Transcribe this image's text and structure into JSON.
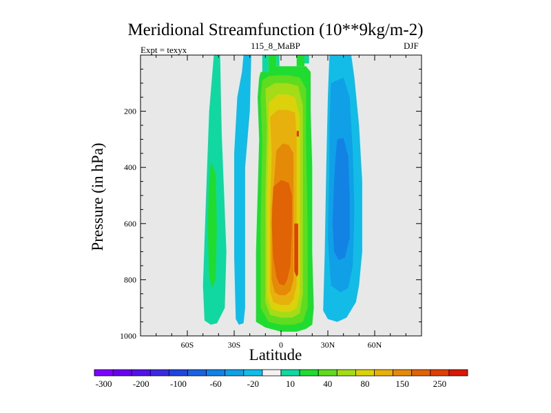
{
  "chart_data": {
    "type": "heatmap",
    "title": "Meridional Streamfunction (10**9kg/m-2)",
    "subtitle_left": "Expt = texyx",
    "subtitle_center": "115_8_MaBP",
    "subtitle_right": "DJF",
    "xlabel": "Latitude",
    "ylabel": "Pressure (in hPa)",
    "xlim": [
      -90,
      90
    ],
    "ylim": [
      1000,
      0
    ],
    "x_ticks": [
      {
        "value": -60,
        "label": "60S"
      },
      {
        "value": -30,
        "label": "30S"
      },
      {
        "value": 0,
        "label": "0"
      },
      {
        "value": 30,
        "label": "30N"
      },
      {
        "value": 60,
        "label": "60N"
      }
    ],
    "y_ticks": [
      {
        "value": 200,
        "label": "200"
      },
      {
        "value": 400,
        "label": "400"
      },
      {
        "value": 600,
        "label": "600"
      },
      {
        "value": 800,
        "label": "800"
      },
      {
        "value": 1000,
        "label": "1000"
      }
    ],
    "colorbar": {
      "colors": [
        "#7f00ff",
        "#6a00f0",
        "#5410e8",
        "#3a28e0",
        "#1e46dc",
        "#1664e0",
        "#1282e4",
        "#10a0e8",
        "#12bce6",
        "#f2f2f2",
        "#10d8a0",
        "#20dc30",
        "#60dc20",
        "#a4dc18",
        "#dcd20c",
        "#e8b00c",
        "#e48a08",
        "#e06406",
        "#dc4006",
        "#d81804"
      ],
      "labels": [
        "-300",
        "-200",
        "-100",
        "-60",
        "-20",
        "10",
        "40",
        "80",
        "150",
        "250"
      ],
      "label_ticks": [
        1,
        3,
        5,
        7,
        9,
        11,
        13,
        15,
        17,
        19
      ]
    },
    "regions": [
      {
        "color": "#10d8a0",
        "points": [
          [
            -43,
            0
          ],
          [
            -39,
            0
          ],
          [
            -38,
            280
          ],
          [
            -35,
            700
          ],
          [
            -36,
            900
          ],
          [
            -41,
            955
          ],
          [
            -45,
            960
          ],
          [
            -49,
            945
          ],
          [
            -50,
            820
          ],
          [
            -48,
            500
          ],
          [
            -46,
            200
          ]
        ]
      },
      {
        "color": "#20dc30",
        "points": [
          [
            -45,
            380
          ],
          [
            -42,
            420
          ],
          [
            -41,
            620
          ],
          [
            -42,
            800
          ],
          [
            -44,
            830
          ],
          [
            -46,
            790
          ],
          [
            -47,
            600
          ],
          [
            -46,
            450
          ]
        ]
      },
      {
        "color": "#12bce6",
        "points": [
          [
            -24,
            0
          ],
          [
            -19,
            0
          ],
          [
            -20,
            200
          ],
          [
            -23,
            400
          ],
          [
            -23,
            700
          ],
          [
            -23,
            900
          ],
          [
            -24,
            955
          ],
          [
            -27,
            960
          ],
          [
            -29,
            940
          ],
          [
            -30,
            720
          ],
          [
            -30,
            350
          ],
          [
            -28,
            150
          ],
          [
            -25,
            60
          ]
        ]
      },
      {
        "color": "#10d8a0",
        "points": [
          [
            -12,
            0
          ],
          [
            -8,
            0
          ],
          [
            -8,
            60
          ],
          [
            -12,
            60
          ]
        ]
      },
      {
        "color": "#20dc30",
        "points": [
          [
            -8,
            0
          ],
          [
            -3,
            0
          ],
          [
            -3,
            60
          ],
          [
            -8,
            60
          ]
        ]
      },
      {
        "color": "#10d8a0",
        "points": [
          [
            -3,
            0
          ],
          [
            -1,
            0
          ],
          [
            -1,
            40
          ],
          [
            -3,
            40
          ]
        ]
      },
      {
        "color": "#20dc30",
        "points": [
          [
            10,
            0
          ],
          [
            15,
            0
          ],
          [
            15,
            40
          ],
          [
            10,
            40
          ]
        ]
      },
      {
        "color": "#10d8a0",
        "points": [
          [
            15,
            0
          ],
          [
            18,
            0
          ],
          [
            18,
            30
          ],
          [
            15,
            30
          ]
        ]
      },
      {
        "color": "#20dc30",
        "points": [
          [
            -13,
            60
          ],
          [
            -5,
            60
          ],
          [
            -3,
            40
          ],
          [
            10,
            40
          ],
          [
            16,
            40
          ],
          [
            19,
            60
          ],
          [
            19,
            200
          ],
          [
            20,
            400
          ],
          [
            20,
            700
          ],
          [
            21,
            900
          ],
          [
            20,
            960
          ],
          [
            16,
            975
          ],
          [
            10,
            985
          ],
          [
            0,
            985
          ],
          [
            -10,
            970
          ],
          [
            -16,
            950
          ],
          [
            -16,
            700
          ],
          [
            -14,
            300
          ],
          [
            -15,
            150
          ],
          [
            -14,
            80
          ]
        ]
      },
      {
        "color": "#60dc20",
        "points": [
          [
            -12,
            90
          ],
          [
            -8,
            75
          ],
          [
            -2,
            72
          ],
          [
            5,
            72
          ],
          [
            12,
            80
          ],
          [
            16,
            120
          ],
          [
            16,
            300
          ],
          [
            17,
            600
          ],
          [
            17,
            900
          ],
          [
            14,
            950
          ],
          [
            8,
            960
          ],
          [
            0,
            960
          ],
          [
            -8,
            950
          ],
          [
            -13,
            900
          ],
          [
            -13,
            600
          ],
          [
            -12,
            300
          ],
          [
            -13,
            150
          ]
        ]
      },
      {
        "color": "#a4dc18",
        "points": [
          [
            -10,
            120
          ],
          [
            -4,
            100
          ],
          [
            4,
            100
          ],
          [
            11,
            110
          ],
          [
            14,
            180
          ],
          [
            14,
            500
          ],
          [
            14,
            850
          ],
          [
            12,
            920
          ],
          [
            7,
            935
          ],
          [
            0,
            935
          ],
          [
            -7,
            925
          ],
          [
            -10,
            880
          ],
          [
            -10,
            500
          ],
          [
            -9,
            250
          ]
        ]
      },
      {
        "color": "#dcd20c",
        "points": [
          [
            -8,
            170
          ],
          [
            -2,
            140
          ],
          [
            4,
            140
          ],
          [
            9,
            150
          ],
          [
            12,
            220
          ],
          [
            12,
            500
          ],
          [
            12,
            850
          ],
          [
            10,
            900
          ],
          [
            6,
            915
          ],
          [
            0,
            915
          ],
          [
            -6,
            905
          ],
          [
            -9,
            860
          ],
          [
            -9,
            500
          ],
          [
            -8,
            300
          ]
        ]
      },
      {
        "color": "#e8b00c",
        "points": [
          [
            -7,
            220
          ],
          [
            -2,
            195
          ],
          [
            4,
            195
          ],
          [
            9,
            205
          ],
          [
            10,
            300
          ],
          [
            10,
            550
          ],
          [
            10,
            820
          ],
          [
            8,
            870
          ],
          [
            5,
            890
          ],
          [
            0,
            890
          ],
          [
            -5,
            880
          ],
          [
            -7,
            840
          ],
          [
            -7,
            550
          ],
          [
            -6,
            350
          ]
        ]
      },
      {
        "color": "#e48a08",
        "points": [
          [
            -3,
            340
          ],
          [
            1,
            315
          ],
          [
            5,
            320
          ],
          [
            8,
            350
          ],
          [
            8,
            550
          ],
          [
            8,
            800
          ],
          [
            6,
            840
          ],
          [
            3,
            855
          ],
          [
            -1,
            855
          ],
          [
            -4,
            845
          ],
          [
            -6,
            800
          ],
          [
            -6,
            550
          ],
          [
            -4,
            420
          ]
        ]
      },
      {
        "color": "#e06406",
        "points": [
          [
            -5,
            470
          ],
          [
            0,
            445
          ],
          [
            5,
            455
          ],
          [
            7,
            500
          ],
          [
            7,
            620
          ],
          [
            6,
            750
          ],
          [
            4,
            800
          ],
          [
            2,
            820
          ],
          [
            -1,
            815
          ],
          [
            -3,
            790
          ],
          [
            -5,
            720
          ],
          [
            -6,
            600
          ]
        ]
      },
      {
        "color": "#dc4006",
        "points": [
          [
            10,
            270
          ],
          [
            11.5,
            270
          ],
          [
            11.5,
            290
          ],
          [
            10,
            290
          ]
        ]
      },
      {
        "color": "#dc4006",
        "points": [
          [
            8.5,
            600
          ],
          [
            11,
            600
          ],
          [
            11,
            780
          ],
          [
            10,
            790
          ],
          [
            8.5,
            770
          ]
        ]
      },
      {
        "color": "#12bce6",
        "points": [
          [
            31,
            0
          ],
          [
            45,
            0
          ],
          [
            47,
            80
          ],
          [
            50,
            250
          ],
          [
            52,
            450
          ],
          [
            52,
            700
          ],
          [
            50,
            820
          ],
          [
            48,
            880
          ],
          [
            42,
            935
          ],
          [
            36,
            950
          ],
          [
            30,
            940
          ],
          [
            27,
            910
          ],
          [
            28,
            700
          ],
          [
            29,
            400
          ],
          [
            30,
            150
          ]
        ]
      },
      {
        "color": "#10a0e8",
        "points": [
          [
            32,
            100
          ],
          [
            40,
            80
          ],
          [
            44,
            150
          ],
          [
            46,
            350
          ],
          [
            47,
            550
          ],
          [
            46,
            750
          ],
          [
            43,
            830
          ],
          [
            38,
            845
          ],
          [
            32,
            820
          ],
          [
            30,
            650
          ],
          [
            31,
            400
          ],
          [
            31,
            250
          ]
        ]
      },
      {
        "color": "#1282e4",
        "points": [
          [
            36,
            300
          ],
          [
            40,
            295
          ],
          [
            43,
            360
          ],
          [
            44,
            500
          ],
          [
            44,
            650
          ],
          [
            41,
            720
          ],
          [
            37,
            730
          ],
          [
            34,
            700
          ],
          [
            33,
            600
          ],
          [
            34,
            450
          ],
          [
            35,
            360
          ]
        ]
      },
      {
        "color": "#12bce6",
        "points": [
          [
            38,
            870
          ],
          [
            42,
            870
          ],
          [
            44,
            895
          ],
          [
            40,
            905
          ]
        ]
      }
    ]
  }
}
